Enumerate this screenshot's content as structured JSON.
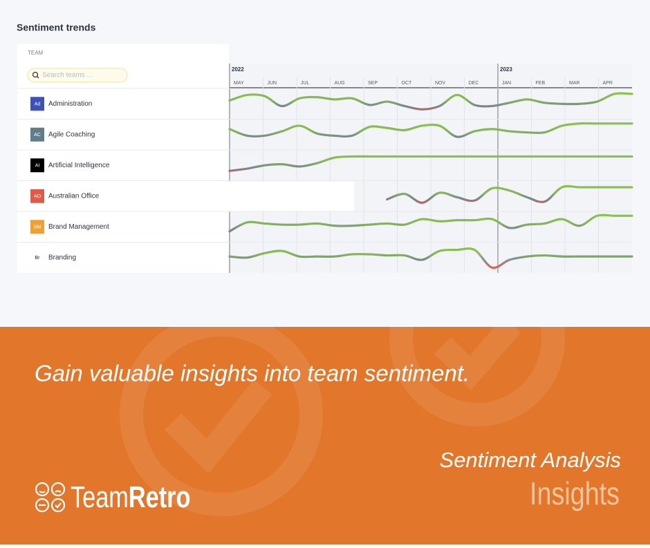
{
  "title": "Sentiment trends",
  "team_header": "TEAM",
  "search_placeholder": "Search teams ...",
  "chart_data": {
    "type": "line",
    "years": [
      "2022",
      null,
      null,
      null,
      null,
      null,
      null,
      null,
      null,
      null,
      null,
      null,
      null,
      null,
      null,
      null,
      "2023",
      null,
      null,
      null,
      null,
      null,
      null,
      null
    ],
    "categories": [
      "MAY",
      null,
      "JUN",
      null,
      "JUL",
      null,
      "AUG",
      null,
      "SEP",
      null,
      "OCT",
      null,
      "NOV",
      null,
      "DEC",
      null,
      "JAN",
      null,
      "FEB",
      null,
      "MAR",
      null,
      "APR",
      null
    ],
    "ylim": [
      0,
      100
    ],
    "series": [
      {
        "name": "Administration",
        "initials": "Ad",
        "avatar_color": "#3f51b5",
        "values": [
          65,
          90,
          85,
          40,
          75,
          80,
          70,
          75,
          45,
          60,
          40,
          25,
          40,
          90,
          45,
          40,
          55,
          70,
          55,
          50,
          50,
          60,
          95,
          95
        ]
      },
      {
        "name": "Agile Coaching",
        "initials": "AC",
        "avatar_color": "#607d8b",
        "values": [
          75,
          45,
          45,
          65,
          90,
          55,
          45,
          45,
          85,
          80,
          70,
          90,
          90,
          40,
          65,
          75,
          65,
          60,
          60,
          90,
          100,
          100,
          100,
          100
        ]
      },
      {
        "name": "Artificial Intelligence",
        "initials": "AI",
        "avatar_color": "#000000",
        "values": [
          25,
          35,
          50,
          55,
          45,
          60,
          85,
          90,
          90,
          90,
          90,
          90,
          90,
          90,
          90,
          90,
          90,
          90,
          90,
          90,
          90,
          90,
          90,
          90
        ]
      },
      {
        "name": "Australian Office",
        "initials": "AO",
        "avatar_color": "#e05a47",
        "values": [
          null,
          null,
          null,
          null,
          null,
          null,
          null,
          null,
          null,
          35,
          60,
          20,
          65,
          45,
          30,
          85,
          75,
          45,
          25,
          90,
          90,
          90,
          90,
          90
        ]
      },
      {
        "name": "Brand Management",
        "initials": "BM",
        "avatar_color": "#f0a030",
        "values": [
          30,
          70,
          65,
          60,
          60,
          65,
          55,
          55,
          60,
          65,
          60,
          85,
          75,
          80,
          80,
          85,
          45,
          60,
          65,
          85,
          55,
          100,
          100,
          100
        ]
      },
      {
        "name": "Branding",
        "initials": "Br",
        "avatar_color": "#ffffff",
        "values": [
          55,
          50,
          70,
          80,
          55,
          55,
          55,
          65,
          65,
          60,
          60,
          40,
          80,
          85,
          85,
          5,
          40,
          55,
          60,
          55,
          55,
          55,
          55,
          55
        ]
      }
    ]
  },
  "banner": {
    "headline": "Gain valuable insights into team sentiment.",
    "product": "Sentiment Analysis",
    "feature": "Insights",
    "logo_team": "Team",
    "logo_retro": "Retro"
  }
}
